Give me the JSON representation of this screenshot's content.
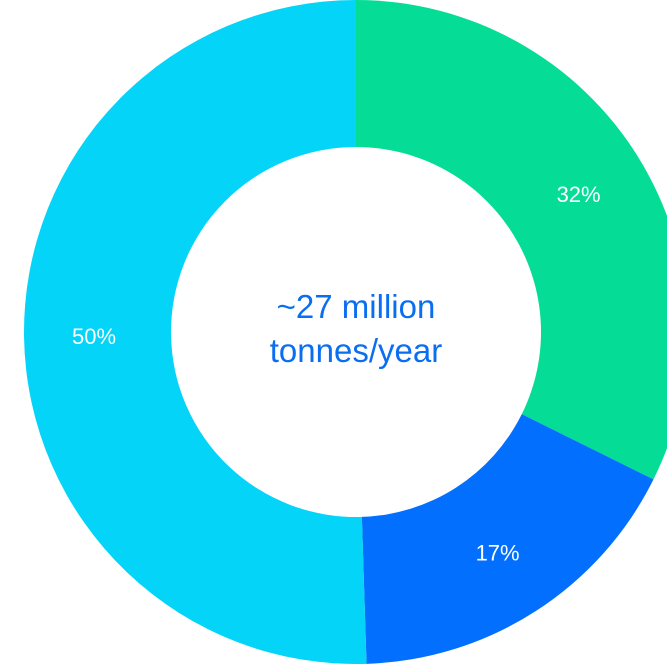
{
  "chart_data": {
    "type": "pie",
    "variant": "donut",
    "slices": [
      {
        "label": "32%",
        "value": 32,
        "color": "#05dd96"
      },
      {
        "label": "17%",
        "value": 17,
        "color": "#026ffe"
      },
      {
        "label": "50%",
        "value": 50,
        "color": "#03d4f8"
      }
    ],
    "center_text": {
      "line1": "~27 million",
      "line2": "tonnes/year",
      "color": "#0a6ef0"
    },
    "legend": "none"
  }
}
